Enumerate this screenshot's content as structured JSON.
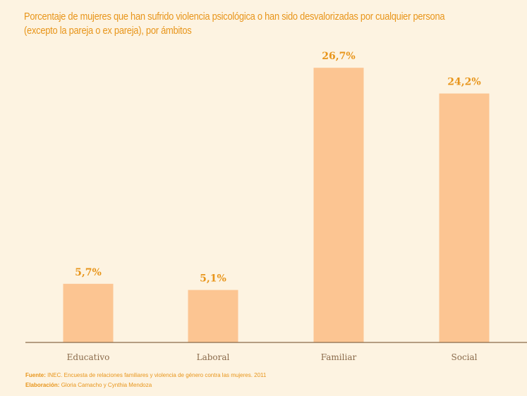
{
  "chart_data": {
    "type": "bar",
    "title_line1": "Porcentaje de mujeres que han sufrido violencia psicológica o han sido desvalorizadas por cualquier persona",
    "title_line2": "(excepto la pareja o ex pareja), por ámbitos",
    "categories": [
      "Educativo",
      "Laboral",
      "Familiar",
      "Social"
    ],
    "values": [
      5.7,
      5.1,
      26.7,
      24.2
    ],
    "value_labels": [
      "5,7%",
      "5,1%",
      "26,7%",
      "24,2%"
    ],
    "ylim": [
      0,
      30
    ],
    "grid": false,
    "bar_color": "#fcc592",
    "axis_color": "#8a6a4a"
  },
  "footer": {
    "source_label": "Fuente:",
    "source_text": "INEC. Encuesta de relaciones familiares y violencia de género contra las mujeres. 2011",
    "credit_label": "Elaboración:",
    "credit_text": "Gloria Camacho y Cynthia Mendoza"
  },
  "colors": {
    "background": "#fdf3e1",
    "accent": "#e8951a"
  }
}
